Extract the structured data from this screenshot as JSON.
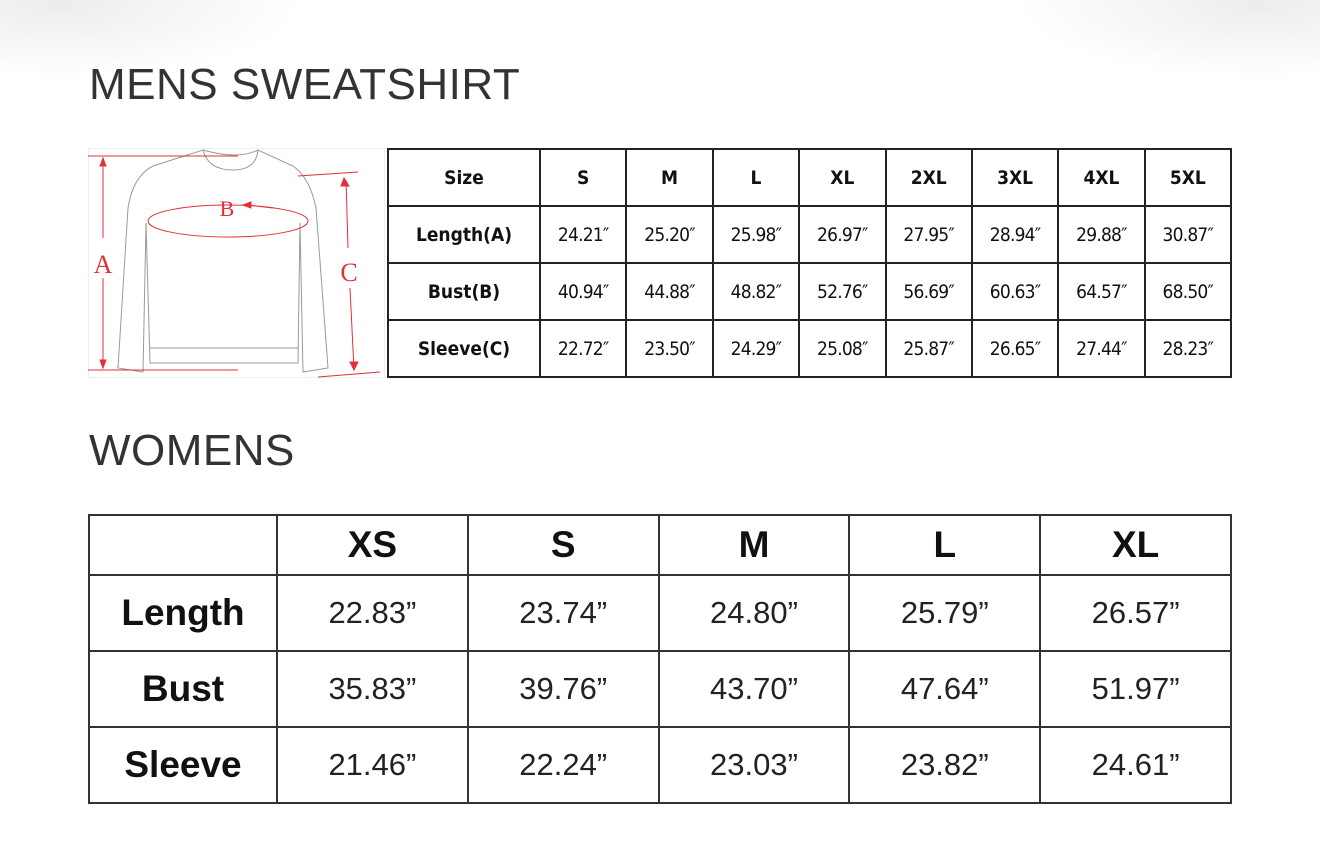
{
  "mens": {
    "title": "MENS SWEATSHIRT",
    "diagram_labels": {
      "a": "A",
      "b": "B",
      "c": "C"
    },
    "header": [
      "Size",
      "S",
      "M",
      "L",
      "XL",
      "2XL",
      "3XL",
      "4XL",
      "5XL"
    ],
    "rows": [
      {
        "label": "Length(A)",
        "values": [
          "24.21″",
          "25.20″",
          "25.98″",
          "26.97″",
          "27.95″",
          "28.94″",
          "29.88″",
          "30.87″"
        ]
      },
      {
        "label": "Bust(B)",
        "values": [
          "40.94″",
          "44.88″",
          "48.82″",
          "52.76″",
          "56.69″",
          "60.63″",
          "64.57″",
          "68.50″"
        ]
      },
      {
        "label": "Sleeve(C)",
        "values": [
          "22.72″",
          "23.50″",
          "24.29″",
          "25.08″",
          "25.87″",
          "26.65″",
          "27.44″",
          "28.23″"
        ]
      }
    ]
  },
  "womens": {
    "title": "WOMENS",
    "header": [
      "",
      "XS",
      "S",
      "M",
      "L",
      "XL"
    ],
    "rows": [
      {
        "label": "Length",
        "values": [
          "22.83”",
          "23.74”",
          "24.80”",
          "25.79”",
          "26.57”"
        ]
      },
      {
        "label": "Bust",
        "values": [
          "35.83”",
          "39.76”",
          "43.70”",
          "47.64”",
          "51.97”"
        ]
      },
      {
        "label": "Sleeve",
        "values": [
          "21.46”",
          "22.24”",
          "23.03”",
          "23.82”",
          "24.61”"
        ]
      }
    ]
  },
  "colors": {
    "measure_lines": "#e0303a",
    "text": "#333333",
    "border": "#222222"
  }
}
